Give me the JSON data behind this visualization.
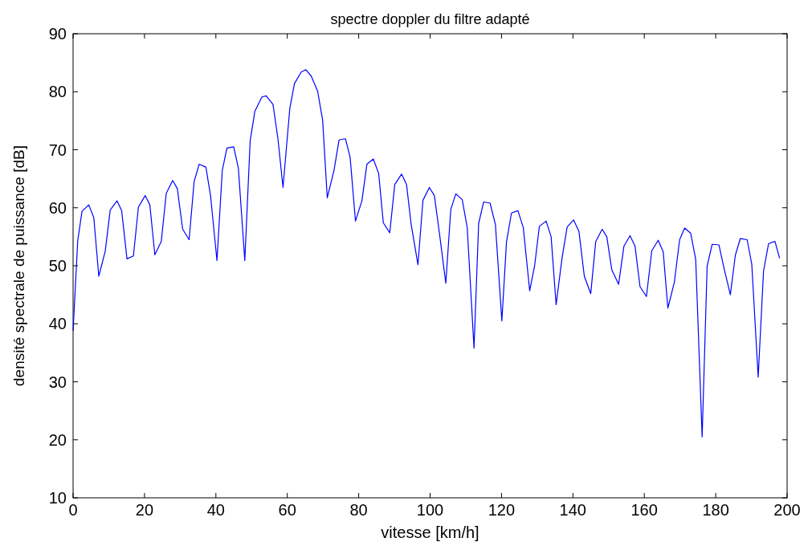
{
  "chart_data": {
    "type": "line",
    "title": "spectre doppler du filtre adapté",
    "xlabel": "vitesse [km/h]",
    "ylabel": "densité spectrale de puissance [dB]",
    "xlim": [
      0,
      200
    ],
    "ylim": [
      10,
      90
    ],
    "xticks": [
      0,
      20,
      40,
      60,
      80,
      100,
      120,
      140,
      160,
      180,
      200
    ],
    "yticks": [
      10,
      20,
      30,
      40,
      50,
      60,
      70,
      80,
      90
    ],
    "grid": false,
    "line_style": "solid",
    "series": [
      {
        "color": "#0000ff",
        "x": [
          0,
          1.3,
          2.5,
          4.4,
          5.8,
          7.2,
          9.0,
          10.4,
          12.3,
          13.6,
          15.1,
          16.9,
          18.3,
          20.2,
          21.5,
          22.9,
          24.7,
          26.1,
          27.9,
          29.2,
          30.7,
          32.5,
          33.9,
          35.3,
          37.2,
          38.5,
          40.3,
          41.8,
          43.1,
          45.0,
          46.3,
          48.1,
          49.6,
          50.9,
          52.9,
          54.1,
          56.0,
          57.4,
          58.8,
          60.7,
          62.0,
          63.9,
          65.2,
          66.7,
          68.5,
          69.9,
          71.2,
          73.1,
          74.5,
          76.3,
          77.6,
          79.1,
          80.9,
          82.3,
          84.1,
          85.6,
          86.9,
          88.7,
          90.1,
          92.0,
          93.4,
          94.7,
          96.6,
          98.0,
          99.8,
          101.2,
          102.7,
          104.4,
          105.8,
          107.2,
          109.0,
          110.4,
          112.3,
          113.6,
          115.0,
          116.8,
          118.3,
          120.1,
          121.4,
          122.8,
          124.6,
          126.1,
          127.9,
          129.3,
          130.6,
          132.5,
          133.9,
          135.3,
          137.0,
          138.4,
          140.2,
          141.7,
          143.2,
          145.0,
          146.4,
          148.2,
          149.5,
          150.9,
          152.8,
          154.3,
          156.0,
          157.4,
          158.8,
          160.6,
          162.1,
          163.9,
          165.3,
          166.6,
          168.4,
          169.9,
          171.3,
          173.0,
          174.4,
          176.2,
          177.6,
          179.0,
          180.9,
          182.4,
          184.1,
          185.5,
          186.9,
          188.8,
          190.1,
          191.9,
          193.4,
          194.8,
          196.6,
          197.9
        ],
        "values": [
          38.8,
          54.3,
          59.4,
          60.5,
          58.3,
          48.2,
          52.5,
          59.6,
          61.2,
          59.5,
          51.2,
          51.7,
          60.1,
          62.1,
          60.5,
          51.9,
          54.2,
          62.5,
          64.7,
          63.3,
          56.3,
          54.5,
          64.5,
          67.5,
          67.0,
          62.1,
          50.9,
          66.5,
          70.3,
          70.5,
          66.8,
          50.9,
          71.5,
          76.6,
          79.1,
          79.3,
          77.8,
          71.8,
          63.5,
          77.1,
          81.4,
          83.4,
          83.8,
          82.7,
          80.1,
          75.1,
          61.7,
          66.5,
          71.7,
          71.9,
          68.7,
          57.7,
          61.2,
          67.5,
          68.4,
          65.9,
          57.4,
          55.7,
          64.0,
          65.8,
          64.0,
          57.1,
          50.2,
          61.3,
          63.5,
          62.1,
          55.2,
          47.0,
          59.7,
          62.4,
          61.4,
          56.6,
          35.8,
          57.3,
          61.0,
          60.8,
          57.1,
          40.5,
          54.1,
          59.1,
          59.5,
          56.6,
          45.7,
          50.1,
          56.8,
          57.7,
          55.0,
          43.3,
          51.5,
          56.7,
          57.9,
          55.9,
          48.2,
          45.2,
          54.2,
          56.3,
          55.0,
          49.3,
          46.8,
          53.4,
          55.2,
          53.4,
          46.4,
          44.7,
          52.6,
          54.4,
          52.4,
          42.7,
          47.1,
          54.5,
          56.5,
          55.6,
          51.1,
          20.5,
          49.9,
          53.7,
          53.6,
          49.4,
          45.0,
          51.8,
          54.7,
          54.5,
          50.3,
          30.8,
          49.1,
          53.8,
          54.2,
          51.3
        ]
      }
    ]
  }
}
